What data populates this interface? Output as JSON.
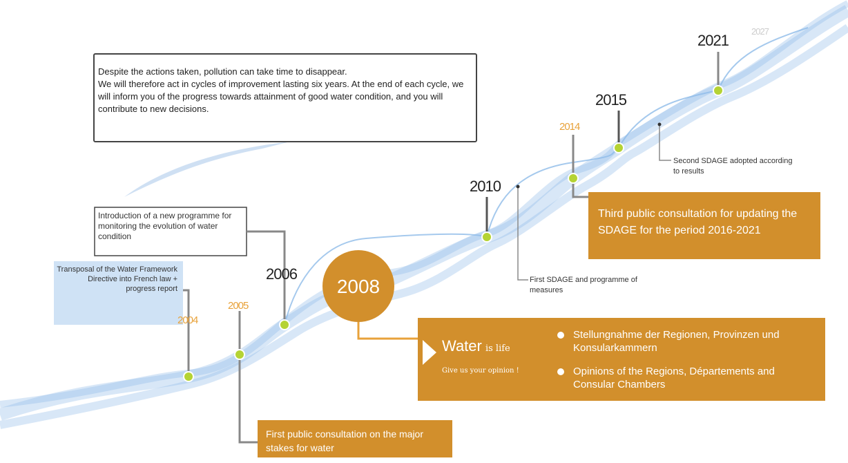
{
  "intro": {
    "line1": "Despite the actions taken, pollution can take time to disappear.",
    "line2": "We will therefore act in cycles of improvement lasting six years. At the end of each cycle, we will inform you of the progress towards attainment of good water condition, and you will contribute to new decisions."
  },
  "years": {
    "y2004": "2004",
    "y2005": "2005",
    "y2006": "2006",
    "y2008": "2008",
    "y2010": "2010",
    "y2014": "2014",
    "y2015": "2015",
    "y2021": "2021",
    "y2027": "2027"
  },
  "notes": {
    "transposal": "Transposal of the Water Framework Directive into French law + progress report",
    "monitoring": "Introduction of a new programme for monitoring the evolution of water condition",
    "first_consultation": "First public consultation on the major stakes for water",
    "first_sdage": "First SDAGE and programme of measures",
    "third_consultation": "Third public consultation for updating the SDAGE for the period 2016-2021",
    "second_sdage": "Second SDAGE adopted according to results"
  },
  "opinion_box": {
    "water": "Water",
    "is_life": "is life",
    "give": "Give us your opinion !",
    "bullets": [
      "Stellungnahme der Regionen, Provinzen und Konsularkammern",
      "Opinions of the Regions, Départements and Consular Chambers"
    ]
  }
}
